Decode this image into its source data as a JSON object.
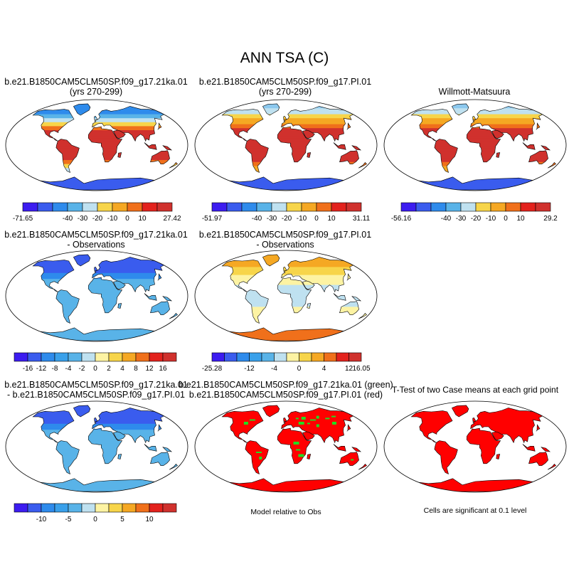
{
  "page_title": "ANN TSA (C)",
  "panels": [
    {
      "title1": "b.e21.B1850CAM5CLM50SP.f09_g17.21ka.01",
      "title2": "(yrs 270-299)",
      "scheme": "glacial"
    },
    {
      "title1": "b.e21.B1850CAM5CLM50SP.f09_g17.PI.01",
      "title2": "(yrs 270-299)",
      "scheme": "warm"
    },
    {
      "title1": "Willmott-Matsuura",
      "title2": "",
      "scheme": "warm"
    },
    {
      "title1": "b.e21.B1850CAM5CLM50SP.f09_g17.21ka.01",
      "title2": "- Observations",
      "scheme": "cold_diff"
    },
    {
      "title1": "b.e21.B1850CAM5CLM50SP.f09_g17.PI.01",
      "title2": "- Observations",
      "scheme": "mixed_diff"
    },
    {
      "title1": "b.e21.B1850CAM5CLM50SP.f09_g17.21ka.01",
      "title2": "- b.e21.B1850CAM5CLM50SP.f09_g17.PI.01",
      "scheme": "cold_diff"
    },
    {
      "title1": "b.e21.B1850CAM5CLM50SP.f09_g17.21ka.01 (green)",
      "title2": "b.e21.B1850CAM5CLM50SP.f09_g17.PI.01 (red)",
      "scheme": "red_green"
    },
    {
      "title1": "T-Test of two Case means at each grid point",
      "title2": "",
      "scheme": "red"
    }
  ],
  "notes": {
    "model_relative": "Model relative to Obs",
    "ttest": "Cells are significant at 0.1 level"
  },
  "chart_data": {
    "type": "heatmap",
    "title": "ANN TSA (C)",
    "variable": "TSA",
    "units": "C",
    "colorbars": [
      {
        "panel": 1,
        "colors": [
          "#3c1cf0",
          "#3a5cee",
          "#2e8bec",
          "#59b3e8",
          "#bfe1f0",
          "#f7d54a",
          "#f5a823",
          "#f0701b",
          "#e3221d",
          "#d0312d"
        ],
        "labels": [
          "-71.65",
          "",
          "-40",
          "-30",
          "-20",
          "-10",
          "0",
          "10",
          "",
          "27.42"
        ]
      },
      {
        "panel": 2,
        "colors": [
          "#3c1cf0",
          "#3a5cee",
          "#2e8bec",
          "#59b3e8",
          "#bfe1f0",
          "#f7d54a",
          "#f5a823",
          "#f0701b",
          "#e3221d",
          "#d0312d"
        ],
        "labels": [
          "-51.97",
          "",
          "-40",
          "-30",
          "-20",
          "-10",
          "0",
          "10",
          "",
          "31.11"
        ]
      },
      {
        "panel": 3,
        "colors": [
          "#3c1cf0",
          "#3a5cee",
          "#2e8bec",
          "#59b3e8",
          "#bfe1f0",
          "#f7d54a",
          "#f5a823",
          "#f0701b",
          "#e3221d",
          "#d0312d"
        ],
        "labels": [
          "-56.16",
          "",
          "-40",
          "-30",
          "-20",
          "-10",
          "0",
          "10",
          "",
          "29.2"
        ]
      },
      {
        "panel": 4,
        "colors": [
          "#3c1cf0",
          "#3a5cee",
          "#2e8bec",
          "#39a0ea",
          "#59b3e8",
          "#bfe1f0",
          "#fdf3a3",
          "#f7d54a",
          "#f5a823",
          "#f0701b",
          "#e3221d",
          "#d0312d"
        ],
        "labels": [
          "-16",
          "-12",
          "-8",
          "-4",
          "-2",
          "0",
          "2",
          "4",
          "8",
          "12",
          "16"
        ]
      },
      {
        "panel": 5,
        "colors": [
          "#3c1cf0",
          "#3a5cee",
          "#2e8bec",
          "#39a0ea",
          "#59b3e8",
          "#bfe1f0",
          "#fdf3a3",
          "#f7d54a",
          "#f5a823",
          "#f0701b",
          "#e3221d",
          "#d0312d"
        ],
        "labels": [
          "-25.28",
          "",
          "-12",
          "",
          "-4",
          "",
          "0",
          "",
          "4",
          "",
          "12",
          "16.05"
        ]
      },
      {
        "panel": 6,
        "colors": [
          "#3c1cf0",
          "#3a5cee",
          "#2e8bec",
          "#39a0ea",
          "#59b3e8",
          "#bfe1f0",
          "#fdf3a3",
          "#f7d54a",
          "#f5a823",
          "#f0701b",
          "#e3221d",
          "#d0312d"
        ],
        "labels": [
          "",
          "-10",
          "",
          "-5",
          "",
          "0",
          "",
          "5",
          "",
          "10",
          ""
        ]
      }
    ]
  }
}
